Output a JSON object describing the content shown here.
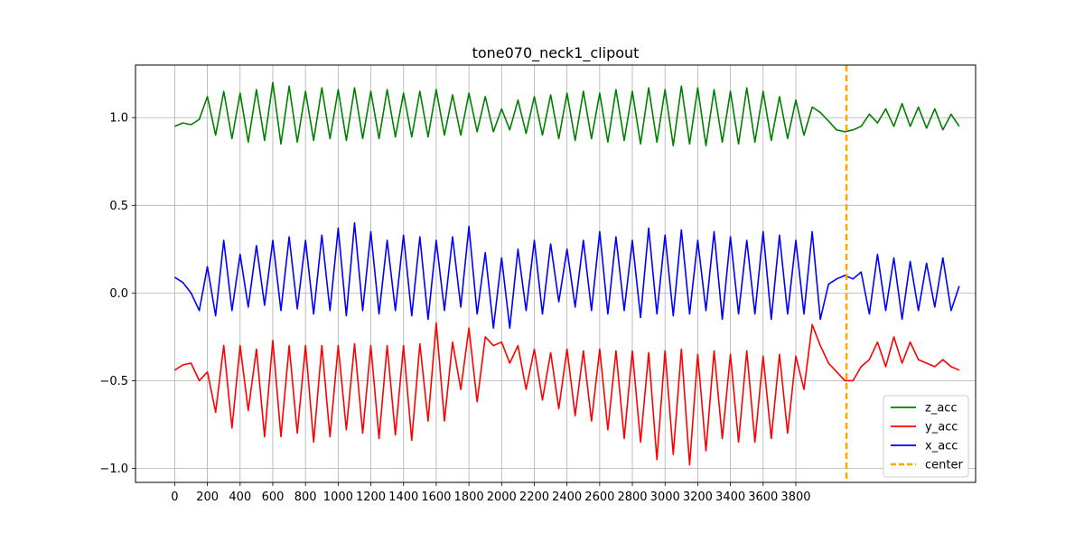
{
  "chart_data": {
    "type": "line",
    "title": "tone070_neck1_clipout",
    "xlabel": "",
    "ylabel": "",
    "xlim": [
      -240,
      4900
    ],
    "ylim": [
      -1.08,
      1.3
    ],
    "x_ticks": [
      0,
      200,
      400,
      600,
      800,
      1000,
      1200,
      1400,
      1600,
      1800,
      2000,
      2200,
      2400,
      2600,
      2800,
      3000,
      3200,
      3400,
      3600,
      3800
    ],
    "x_tick_labels": [
      "0",
      "200",
      "400",
      "600",
      "800",
      "1000",
      "1200",
      "1400",
      "1600",
      "1800",
      "2000",
      "2200",
      "2400",
      "2600",
      "2800",
      "3000",
      "3200",
      "3400",
      "3600",
      "3800"
    ],
    "y_ticks": [
      -1.0,
      -0.5,
      0.0,
      0.5,
      1.0
    ],
    "y_tick_labels": [
      "−1.0",
      "−0.5",
      "0.0",
      "0.5",
      "1.0"
    ],
    "grid": true,
    "legend_position": "lower-right",
    "vline": {
      "name": "center",
      "x": 4110,
      "color": "#ffa500",
      "style": "dashed"
    },
    "series": [
      {
        "name": "z_acc",
        "color": "#008000",
        "x": [
          0,
          50,
          100,
          150,
          200,
          250,
          300,
          350,
          400,
          450,
          500,
          550,
          600,
          650,
          700,
          750,
          800,
          850,
          900,
          950,
          1000,
          1050,
          1100,
          1150,
          1200,
          1250,
          1300,
          1350,
          1400,
          1450,
          1500,
          1550,
          1600,
          1650,
          1700,
          1750,
          1800,
          1850,
          1900,
          1950,
          2000,
          2050,
          2100,
          2150,
          2200,
          2250,
          2300,
          2350,
          2400,
          2450,
          2500,
          2550,
          2600,
          2650,
          2700,
          2750,
          2800,
          2850,
          2900,
          2950,
          3000,
          3050,
          3100,
          3150,
          3200,
          3250,
          3300,
          3350,
          3400,
          3450,
          3500,
          3550,
          3600,
          3650,
          3700,
          3750,
          3800,
          3850,
          3900,
          3950,
          4000,
          4050,
          4100,
          4150,
          4200,
          4250,
          4300,
          4350,
          4400,
          4450,
          4500,
          4550,
          4600,
          4650,
          4700,
          4750,
          4800
        ],
        "y": [
          0.95,
          0.97,
          0.96,
          0.99,
          1.12,
          0.9,
          1.15,
          0.88,
          1.14,
          0.86,
          1.16,
          0.87,
          1.2,
          0.85,
          1.18,
          0.86,
          1.15,
          0.87,
          1.17,
          0.88,
          1.16,
          0.87,
          1.17,
          0.88,
          1.15,
          0.88,
          1.16,
          0.89,
          1.14,
          0.89,
          1.15,
          0.89,
          1.16,
          0.9,
          1.13,
          0.9,
          1.14,
          0.92,
          1.12,
          0.92,
          1.05,
          0.93,
          1.1,
          0.91,
          1.12,
          0.9,
          1.13,
          0.88,
          1.14,
          0.87,
          1.15,
          0.88,
          1.14,
          0.86,
          1.16,
          0.87,
          1.15,
          0.85,
          1.17,
          0.86,
          1.16,
          0.84,
          1.18,
          0.85,
          1.17,
          0.84,
          1.16,
          0.86,
          1.15,
          0.85,
          1.17,
          0.86,
          1.15,
          0.87,
          1.12,
          0.88,
          1.1,
          0.9,
          1.06,
          1.03,
          0.98,
          0.93,
          0.92,
          0.93,
          0.95,
          1.02,
          0.97,
          1.05,
          0.95,
          1.08,
          0.95,
          1.06,
          0.94,
          1.05,
          0.93,
          1.02,
          0.95
        ]
      },
      {
        "name": "y_acc",
        "color": "#ff0000",
        "x": [
          0,
          50,
          100,
          150,
          200,
          250,
          300,
          350,
          400,
          450,
          500,
          550,
          600,
          650,
          700,
          750,
          800,
          850,
          900,
          950,
          1000,
          1050,
          1100,
          1150,
          1200,
          1250,
          1300,
          1350,
          1400,
          1450,
          1500,
          1550,
          1600,
          1650,
          1700,
          1750,
          1800,
          1850,
          1900,
          1950,
          2000,
          2050,
          2100,
          2150,
          2200,
          2250,
          2300,
          2350,
          2400,
          2450,
          2500,
          2550,
          2600,
          2650,
          2700,
          2750,
          2800,
          2850,
          2900,
          2950,
          3000,
          3050,
          3100,
          3150,
          3200,
          3250,
          3300,
          3350,
          3400,
          3450,
          3500,
          3550,
          3600,
          3650,
          3700,
          3750,
          3800,
          3850,
          3900,
          3950,
          4000,
          4050,
          4100,
          4150,
          4200,
          4250,
          4300,
          4350,
          4400,
          4450,
          4500,
          4550,
          4600,
          4650,
          4700,
          4750,
          4800
        ],
        "y": [
          -0.44,
          -0.41,
          -0.4,
          -0.5,
          -0.45,
          -0.68,
          -0.3,
          -0.77,
          -0.3,
          -0.67,
          -0.32,
          -0.82,
          -0.27,
          -0.82,
          -0.3,
          -0.8,
          -0.3,
          -0.85,
          -0.3,
          -0.82,
          -0.3,
          -0.78,
          -0.29,
          -0.8,
          -0.3,
          -0.83,
          -0.3,
          -0.81,
          -0.3,
          -0.84,
          -0.29,
          -0.73,
          -0.17,
          -0.73,
          -0.28,
          -0.55,
          -0.2,
          -0.62,
          -0.25,
          -0.3,
          -0.28,
          -0.4,
          -0.3,
          -0.55,
          -0.32,
          -0.61,
          -0.34,
          -0.66,
          -0.32,
          -0.7,
          -0.33,
          -0.73,
          -0.32,
          -0.78,
          -0.33,
          -0.83,
          -0.33,
          -0.85,
          -0.34,
          -0.95,
          -0.33,
          -0.92,
          -0.32,
          -0.98,
          -0.35,
          -0.9,
          -0.33,
          -0.83,
          -0.35,
          -0.85,
          -0.33,
          -0.85,
          -0.36,
          -0.83,
          -0.35,
          -0.8,
          -0.36,
          -0.55,
          -0.18,
          -0.3,
          -0.4,
          -0.45,
          -0.5,
          -0.5,
          -0.42,
          -0.38,
          -0.28,
          -0.42,
          -0.25,
          -0.4,
          -0.28,
          -0.38,
          -0.4,
          -0.42,
          -0.38,
          -0.42,
          -0.44
        ]
      },
      {
        "name": "x_acc",
        "color": "#0000ff",
        "x": [
          0,
          50,
          100,
          150,
          200,
          250,
          300,
          350,
          400,
          450,
          500,
          550,
          600,
          650,
          700,
          750,
          800,
          850,
          900,
          950,
          1000,
          1050,
          1100,
          1150,
          1200,
          1250,
          1300,
          1350,
          1400,
          1450,
          1500,
          1550,
          1600,
          1650,
          1700,
          1750,
          1800,
          1850,
          1900,
          1950,
          2000,
          2050,
          2100,
          2150,
          2200,
          2250,
          2300,
          2350,
          2400,
          2450,
          2500,
          2550,
          2600,
          2650,
          2700,
          2750,
          2800,
          2850,
          2900,
          2950,
          3000,
          3050,
          3100,
          3150,
          3200,
          3250,
          3300,
          3350,
          3400,
          3450,
          3500,
          3550,
          3600,
          3650,
          3700,
          3750,
          3800,
          3850,
          3900,
          3950,
          4000,
          4050,
          4100,
          4150,
          4200,
          4250,
          4300,
          4350,
          4400,
          4450,
          4500,
          4550,
          4600,
          4650,
          4700,
          4750,
          4800
        ],
        "y": [
          0.09,
          0.06,
          0.0,
          -0.1,
          0.15,
          -0.13,
          0.3,
          -0.1,
          0.22,
          -0.08,
          0.27,
          -0.07,
          0.3,
          -0.1,
          0.32,
          -0.09,
          0.3,
          -0.12,
          0.33,
          -0.1,
          0.37,
          -0.13,
          0.4,
          -0.1,
          0.35,
          -0.12,
          0.3,
          -0.1,
          0.33,
          -0.13,
          0.32,
          -0.15,
          0.3,
          -0.1,
          0.32,
          -0.08,
          0.38,
          -0.12,
          0.23,
          -0.2,
          0.2,
          -0.2,
          0.25,
          -0.1,
          0.3,
          -0.12,
          0.28,
          -0.05,
          0.25,
          -0.08,
          0.3,
          -0.1,
          0.35,
          -0.12,
          0.32,
          -0.1,
          0.3,
          -0.14,
          0.37,
          -0.12,
          0.33,
          -0.13,
          0.36,
          -0.12,
          0.3,
          -0.1,
          0.35,
          -0.15,
          0.32,
          -0.12,
          0.3,
          -0.12,
          0.35,
          -0.15,
          0.33,
          -0.12,
          0.3,
          -0.12,
          0.35,
          -0.15,
          0.05,
          0.08,
          0.1,
          0.08,
          0.12,
          -0.12,
          0.22,
          -0.1,
          0.2,
          -0.15,
          0.18,
          -0.1,
          0.17,
          -0.08,
          0.2,
          -0.1,
          0.04
        ]
      }
    ]
  }
}
